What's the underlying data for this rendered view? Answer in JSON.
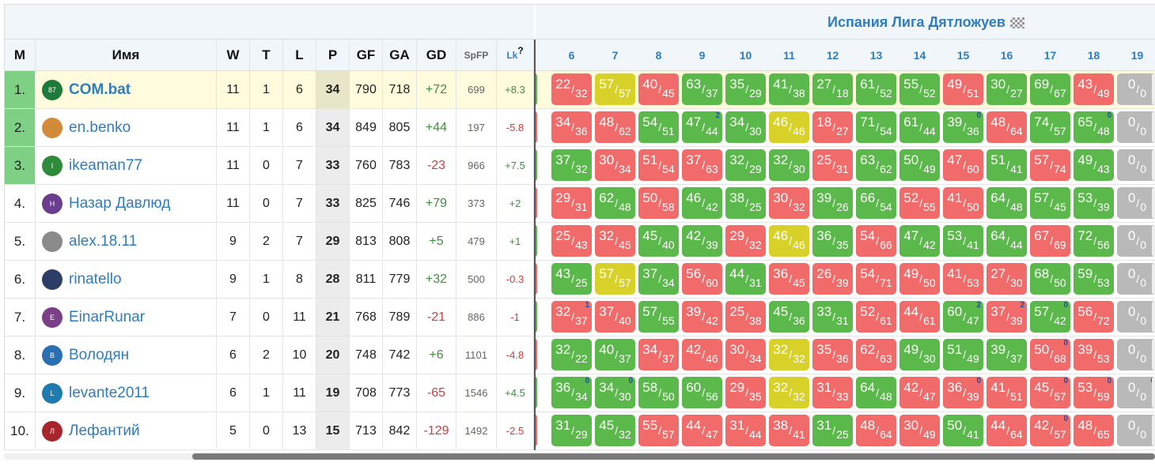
{
  "league_title": "Испания Лига Дятложуев",
  "columns": {
    "m": "M",
    "name": "Имя",
    "w": "W",
    "t": "T",
    "l": "L",
    "p": "P",
    "gf": "GF",
    "ga": "GA",
    "gd": "GD",
    "spfp": "SpFP",
    "lk": "Lk",
    "lk_help": "?"
  },
  "rounds": [
    "6",
    "7",
    "8",
    "9",
    "10",
    "11",
    "12",
    "13",
    "14",
    "15",
    "16",
    "17",
    "18",
    "19"
  ],
  "colors": {
    "win": "#5bb84a",
    "loss": "#f26b6b",
    "draw": "#d7d12a",
    "none": "#b9b9b9",
    "link": "#2f7dbf"
  },
  "rows": [
    {
      "m": "1.",
      "name": "COM.bat",
      "avatar": "jersey-icon",
      "avatar_color": "#1e7a3a",
      "avatar_text": "87",
      "w": "11",
      "t": "1",
      "l": "6",
      "p": "34",
      "gf": "790",
      "ga": "718",
      "gd": "+72",
      "spfp": "699",
      "lk": "+8.3",
      "highlight": true,
      "scores": [
        [
          "22",
          "32",
          "l",
          ""
        ],
        [
          "57",
          "57",
          "d",
          ""
        ],
        [
          "40",
          "45",
          "l",
          ""
        ],
        [
          "63",
          "37",
          "w",
          ""
        ],
        [
          "35",
          "29",
          "w",
          ""
        ],
        [
          "41",
          "38",
          "w",
          ""
        ],
        [
          "27",
          "18",
          "w",
          ""
        ],
        [
          "61",
          "52",
          "w",
          ""
        ],
        [
          "55",
          "52",
          "w",
          ""
        ],
        [
          "49",
          "51",
          "l",
          ""
        ],
        [
          "30",
          "27",
          "w",
          ""
        ],
        [
          "69",
          "67",
          "w",
          ""
        ],
        [
          "43",
          "49",
          "l",
          ""
        ],
        [
          "0",
          "0",
          "n",
          ""
        ]
      ]
    },
    {
      "m": "2.",
      "name": "en.benko",
      "avatar": "horse-icon",
      "avatar_color": "#d38b3a",
      "avatar_text": "",
      "w": "11",
      "t": "1",
      "l": "6",
      "p": "34",
      "gf": "849",
      "ga": "805",
      "gd": "+44",
      "spfp": "197",
      "lk": "-5.8",
      "scores": [
        [
          "34",
          "36",
          "l",
          ""
        ],
        [
          "48",
          "62",
          "l",
          ""
        ],
        [
          "54",
          "51",
          "w",
          ""
        ],
        [
          "47",
          "44",
          "w",
          "2"
        ],
        [
          "34",
          "30",
          "w",
          ""
        ],
        [
          "46",
          "46",
          "d",
          ""
        ],
        [
          "18",
          "27",
          "l",
          ""
        ],
        [
          "71",
          "54",
          "w",
          ""
        ],
        [
          "61",
          "44",
          "w",
          ""
        ],
        [
          "39",
          "36",
          "w",
          "0"
        ],
        [
          "48",
          "64",
          "l",
          ""
        ],
        [
          "74",
          "57",
          "w",
          ""
        ],
        [
          "65",
          "48",
          "w",
          "0"
        ],
        [
          "0",
          "0",
          "n",
          ""
        ]
      ]
    },
    {
      "m": "3.",
      "name": "ikeaman77",
      "avatar": "letter-avatar",
      "avatar_color": "#2e8b3a",
      "avatar_text": "I",
      "w": "11",
      "t": "0",
      "l": "7",
      "p": "33",
      "gf": "760",
      "ga": "783",
      "gd": "-23",
      "spfp": "966",
      "lk": "+7.5",
      "scores": [
        [
          "37",
          "32",
          "w",
          ""
        ],
        [
          "30",
          "34",
          "l",
          ""
        ],
        [
          "51",
          "54",
          "l",
          ""
        ],
        [
          "37",
          "63",
          "l",
          ""
        ],
        [
          "32",
          "29",
          "w",
          ""
        ],
        [
          "32",
          "30",
          "w",
          ""
        ],
        [
          "25",
          "31",
          "l",
          ""
        ],
        [
          "63",
          "62",
          "w",
          ""
        ],
        [
          "50",
          "49",
          "w",
          ""
        ],
        [
          "47",
          "60",
          "l",
          ""
        ],
        [
          "51",
          "41",
          "w",
          ""
        ],
        [
          "57",
          "74",
          "l",
          ""
        ],
        [
          "49",
          "43",
          "w",
          ""
        ],
        [
          "0",
          "0",
          "n",
          ""
        ]
      ]
    },
    {
      "m": "4.",
      "name": "Назар Давлюд",
      "avatar": "letter-avatar",
      "avatar_color": "#6a3d8f",
      "avatar_text": "Н",
      "w": "11",
      "t": "0",
      "l": "7",
      "p": "33",
      "gf": "825",
      "ga": "746",
      "gd": "+79",
      "spfp": "373",
      "lk": "+2",
      "scores": [
        [
          "29",
          "31",
          "l",
          ""
        ],
        [
          "62",
          "48",
          "w",
          ""
        ],
        [
          "50",
          "58",
          "l",
          ""
        ],
        [
          "46",
          "42",
          "w",
          ""
        ],
        [
          "38",
          "25",
          "w",
          ""
        ],
        [
          "30",
          "32",
          "l",
          ""
        ],
        [
          "39",
          "26",
          "w",
          ""
        ],
        [
          "66",
          "54",
          "w",
          ""
        ],
        [
          "52",
          "55",
          "l",
          ""
        ],
        [
          "41",
          "50",
          "l",
          ""
        ],
        [
          "64",
          "48",
          "w",
          ""
        ],
        [
          "57",
          "45",
          "w",
          ""
        ],
        [
          "53",
          "39",
          "w",
          ""
        ],
        [
          "0",
          "0",
          "n",
          ""
        ]
      ]
    },
    {
      "m": "5.",
      "name": "alex.18.11",
      "avatar": "photo-avatar",
      "avatar_color": "#8a8a8a",
      "avatar_text": "",
      "w": "9",
      "t": "2",
      "l": "7",
      "p": "29",
      "gf": "813",
      "ga": "808",
      "gd": "+5",
      "spfp": "479",
      "lk": "+1",
      "scores": [
        [
          "25",
          "43",
          "l",
          ""
        ],
        [
          "32",
          "45",
          "l",
          ""
        ],
        [
          "45",
          "40",
          "w",
          ""
        ],
        [
          "42",
          "39",
          "w",
          ""
        ],
        [
          "29",
          "32",
          "l",
          ""
        ],
        [
          "46",
          "46",
          "d",
          ""
        ],
        [
          "36",
          "35",
          "w",
          ""
        ],
        [
          "54",
          "66",
          "l",
          ""
        ],
        [
          "47",
          "42",
          "w",
          ""
        ],
        [
          "53",
          "41",
          "w",
          ""
        ],
        [
          "64",
          "44",
          "w",
          ""
        ],
        [
          "67",
          "69",
          "l",
          ""
        ],
        [
          "72",
          "56",
          "w",
          ""
        ],
        [
          "0",
          "0",
          "n",
          ""
        ]
      ]
    },
    {
      "m": "6.",
      "name": "rinatello",
      "avatar": "photo-avatar",
      "avatar_color": "#2c3e66",
      "avatar_text": "",
      "w": "9",
      "t": "1",
      "l": "8",
      "p": "28",
      "gf": "811",
      "ga": "779",
      "gd": "+32",
      "spfp": "500",
      "lk": "-0.3",
      "scores": [
        [
          "43",
          "25",
          "w",
          ""
        ],
        [
          "57",
          "57",
          "d",
          ""
        ],
        [
          "37",
          "34",
          "w",
          ""
        ],
        [
          "56",
          "60",
          "l",
          ""
        ],
        [
          "44",
          "31",
          "w",
          ""
        ],
        [
          "36",
          "45",
          "l",
          ""
        ],
        [
          "26",
          "39",
          "l",
          ""
        ],
        [
          "54",
          "71",
          "l",
          ""
        ],
        [
          "49",
          "50",
          "l",
          ""
        ],
        [
          "41",
          "53",
          "l",
          ""
        ],
        [
          "27",
          "30",
          "l",
          ""
        ],
        [
          "68",
          "50",
          "w",
          ""
        ],
        [
          "59",
          "53",
          "w",
          ""
        ],
        [
          "0",
          "0",
          "n",
          ""
        ]
      ]
    },
    {
      "m": "7.",
      "name": "EinarRunar",
      "avatar": "letter-avatar",
      "avatar_color": "#7b3f8a",
      "avatar_text": "E",
      "w": "7",
      "t": "0",
      "l": "11",
      "p": "21",
      "gf": "768",
      "ga": "789",
      "gd": "-21",
      "spfp": "886",
      "lk": "-1",
      "scores": [
        [
          "32",
          "37",
          "l",
          "1"
        ],
        [
          "37",
          "40",
          "l",
          ""
        ],
        [
          "57",
          "55",
          "w",
          ""
        ],
        [
          "39",
          "42",
          "l",
          ""
        ],
        [
          "25",
          "38",
          "l",
          ""
        ],
        [
          "45",
          "36",
          "w",
          ""
        ],
        [
          "33",
          "31",
          "w",
          ""
        ],
        [
          "52",
          "61",
          "l",
          ""
        ],
        [
          "44",
          "61",
          "l",
          ""
        ],
        [
          "60",
          "47",
          "w",
          "2"
        ],
        [
          "37",
          "39",
          "l",
          "2"
        ],
        [
          "57",
          "42",
          "w",
          "0"
        ],
        [
          "56",
          "72",
          "l",
          ""
        ],
        [
          "0",
          "0",
          "n",
          ""
        ]
      ]
    },
    {
      "m": "8.",
      "name": "Володян",
      "avatar": "letter-avatar",
      "avatar_color": "#2a6fb0",
      "avatar_text": "В",
      "w": "6",
      "t": "2",
      "l": "10",
      "p": "20",
      "gf": "748",
      "ga": "742",
      "gd": "+6",
      "spfp": "1101",
      "lk": "-4.8",
      "scores": [
        [
          "32",
          "22",
          "w",
          ""
        ],
        [
          "40",
          "37",
          "w",
          ""
        ],
        [
          "34",
          "37",
          "l",
          ""
        ],
        [
          "42",
          "46",
          "l",
          ""
        ],
        [
          "30",
          "34",
          "l",
          ""
        ],
        [
          "32",
          "32",
          "d",
          ""
        ],
        [
          "35",
          "36",
          "l",
          ""
        ],
        [
          "62",
          "63",
          "l",
          ""
        ],
        [
          "49",
          "30",
          "w",
          ""
        ],
        [
          "51",
          "49",
          "w",
          ""
        ],
        [
          "39",
          "37",
          "w",
          ""
        ],
        [
          "50",
          "68",
          "l",
          "0"
        ],
        [
          "39",
          "53",
          "l",
          ""
        ],
        [
          "0",
          "0",
          "n",
          ""
        ]
      ]
    },
    {
      "m": "9.",
      "name": "levante2011",
      "avatar": "letter-avatar",
      "avatar_color": "#1f7ab0",
      "avatar_text": "L",
      "w": "6",
      "t": "1",
      "l": "11",
      "p": "19",
      "gf": "708",
      "ga": "773",
      "gd": "-65",
      "spfp": "1546",
      "lk": "+4.5",
      "scores": [
        [
          "36",
          "34",
          "w",
          "0"
        ],
        [
          "34",
          "30",
          "w",
          "0"
        ],
        [
          "58",
          "50",
          "w",
          ""
        ],
        [
          "60",
          "56",
          "w",
          ""
        ],
        [
          "29",
          "35",
          "l",
          ""
        ],
        [
          "32",
          "32",
          "d",
          ""
        ],
        [
          "31",
          "33",
          "l",
          ""
        ],
        [
          "64",
          "48",
          "w",
          ""
        ],
        [
          "42",
          "47",
          "l",
          ""
        ],
        [
          "36",
          "39",
          "l",
          "0"
        ],
        [
          "41",
          "51",
          "l",
          ""
        ],
        [
          "45",
          "57",
          "l",
          "0"
        ],
        [
          "53",
          "59",
          "l",
          "0"
        ],
        [
          "0",
          "0",
          "n",
          "0"
        ]
      ]
    },
    {
      "m": "10.",
      "name": "Лефантий",
      "avatar": "letter-avatar",
      "avatar_color": "#a8262b",
      "avatar_text": "Л",
      "w": "5",
      "t": "0",
      "l": "13",
      "p": "15",
      "gf": "713",
      "ga": "842",
      "gd": "-129",
      "spfp": "1492",
      "lk": "-2.5",
      "scores": [
        [
          "31",
          "29",
          "w",
          ""
        ],
        [
          "45",
          "32",
          "w",
          ""
        ],
        [
          "55",
          "57",
          "l",
          ""
        ],
        [
          "44",
          "47",
          "l",
          ""
        ],
        [
          "31",
          "44",
          "l",
          ""
        ],
        [
          "38",
          "41",
          "l",
          ""
        ],
        [
          "31",
          "25",
          "w",
          ""
        ],
        [
          "48",
          "64",
          "l",
          ""
        ],
        [
          "30",
          "49",
          "l",
          ""
        ],
        [
          "50",
          "41",
          "w",
          ""
        ],
        [
          "44",
          "64",
          "l",
          ""
        ],
        [
          "42",
          "57",
          "l",
          "0"
        ],
        [
          "48",
          "65",
          "l",
          ""
        ],
        [
          "0",
          "0",
          "n",
          ""
        ]
      ]
    }
  ]
}
